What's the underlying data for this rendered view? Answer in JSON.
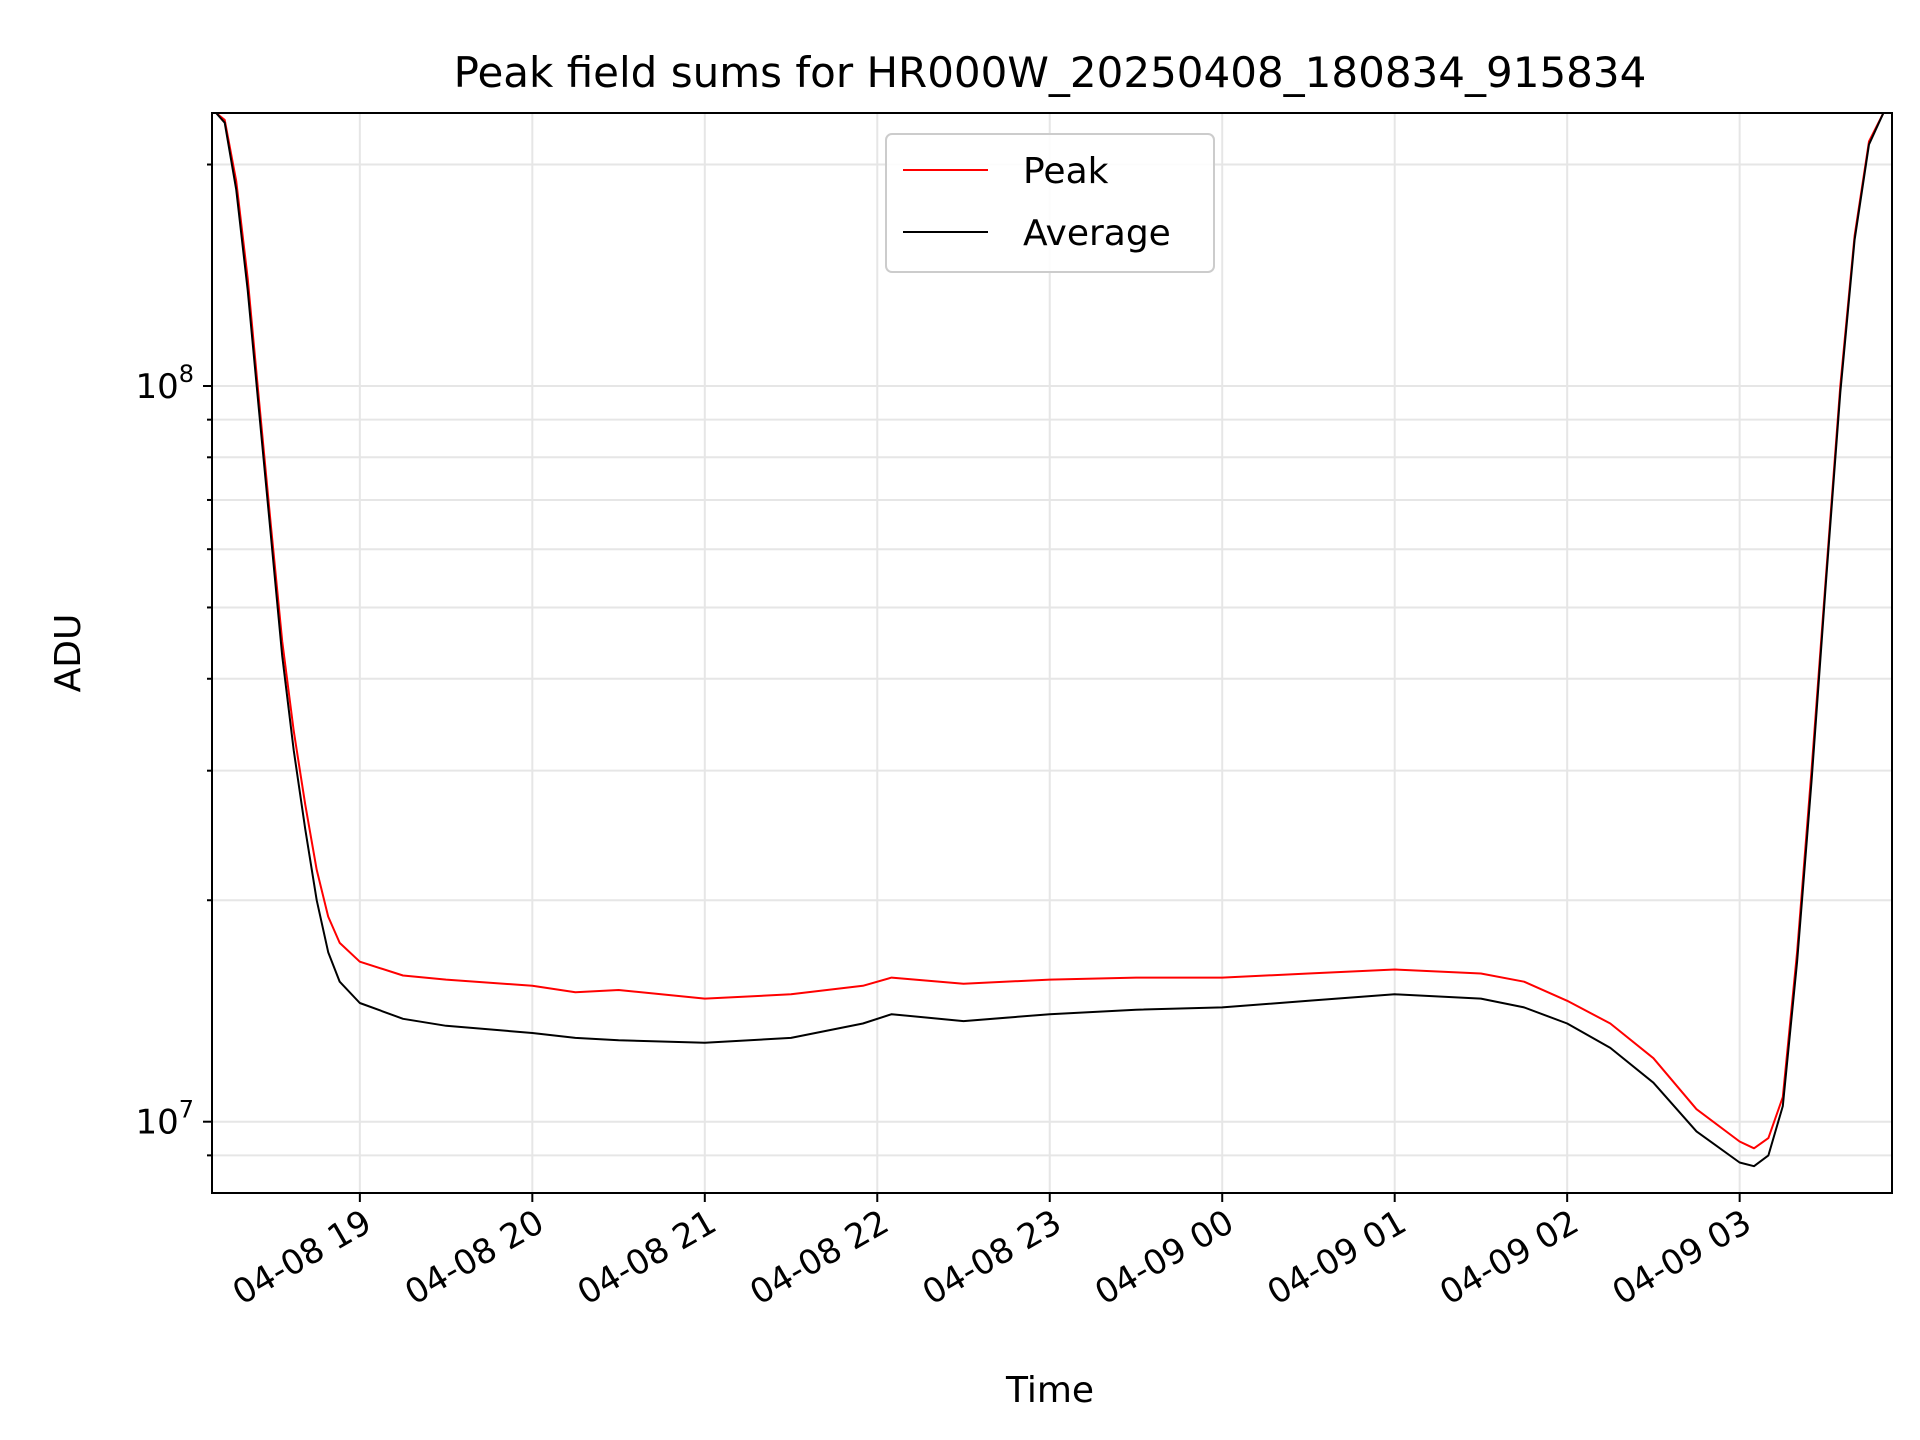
{
  "chart_data": {
    "type": "line",
    "title": "Peak field sums for HR000W_20250408_180834_915834",
    "xlabel": "Time",
    "ylabel": "ADU",
    "yscale": "log",
    "ylim": [
      8000000.0,
      235000000.0
    ],
    "xlim": [
      "2025-04-08 18:08:34",
      "2025-04-09 03:53:00"
    ],
    "grid": true,
    "legend_position": "top-center",
    "x_ticks": [
      {
        "t": "2025-04-08 19:00",
        "label": "04-08 19"
      },
      {
        "t": "2025-04-08 20:00",
        "label": "04-08 20"
      },
      {
        "t": "2025-04-08 21:00",
        "label": "04-08 21"
      },
      {
        "t": "2025-04-08 22:00",
        "label": "04-08 22"
      },
      {
        "t": "2025-04-08 23:00",
        "label": "04-08 23"
      },
      {
        "t": "2025-04-09 00:00",
        "label": "04-09 00"
      },
      {
        "t": "2025-04-09 01:00",
        "label": "04-09 01"
      },
      {
        "t": "2025-04-09 02:00",
        "label": "04-09 02"
      },
      {
        "t": "2025-04-09 03:00",
        "label": "04-09 03"
      }
    ],
    "y_major_ticks": [
      {
        "value": 10000000,
        "base": "10",
        "exp": "7"
      },
      {
        "value": 100000000,
        "base": "10",
        "exp": "8"
      }
    ],
    "y_minor_ticks": [
      9000000,
      20000000,
      30000000,
      40000000,
      50000000,
      60000000,
      70000000,
      80000000,
      90000000,
      200000000
    ],
    "series": [
      {
        "name": "Peak",
        "color": "#ff0000",
        "x": [
          "2025-04-08 18:10",
          "2025-04-08 18:13",
          "2025-04-08 18:17",
          "2025-04-08 18:21",
          "2025-04-08 18:25",
          "2025-04-08 18:29",
          "2025-04-08 18:33",
          "2025-04-08 18:37",
          "2025-04-08 18:41",
          "2025-04-08 18:45",
          "2025-04-08 18:49",
          "2025-04-08 18:53",
          "2025-04-08 19:00",
          "2025-04-08 19:15",
          "2025-04-08 19:30",
          "2025-04-08 20:00",
          "2025-04-08 20:15",
          "2025-04-08 20:30",
          "2025-04-08 21:00",
          "2025-04-08 21:30",
          "2025-04-08 21:55",
          "2025-04-08 22:05",
          "2025-04-08 22:30",
          "2025-04-08 23:00",
          "2025-04-08 23:30",
          "2025-04-09 00:00",
          "2025-04-09 00:30",
          "2025-04-09 01:00",
          "2025-04-09 01:30",
          "2025-04-09 01:45",
          "2025-04-09 02:00",
          "2025-04-09 02:15",
          "2025-04-09 02:30",
          "2025-04-09 02:45",
          "2025-04-09 03:00",
          "2025-04-09 03:05",
          "2025-04-09 03:10",
          "2025-04-09 03:15",
          "2025-04-09 03:20",
          "2025-04-09 03:25",
          "2025-04-09 03:30",
          "2025-04-09 03:35",
          "2025-04-09 03:40",
          "2025-04-09 03:45",
          "2025-04-09 03:50"
        ],
        "y": [
          235000000,
          230000000,
          190000000,
          140000000,
          95000000,
          65000000,
          45000000,
          34000000,
          27000000,
          22000000,
          19000000,
          17500000,
          16500000,
          15800000,
          15600000,
          15300000,
          15000000,
          15100000,
          14700000,
          14900000,
          15300000,
          15700000,
          15400000,
          15600000,
          15700000,
          15700000,
          15900000,
          16100000,
          15900000,
          15500000,
          14600000,
          13600000,
          12200000,
          10400000,
          9400000,
          9200000,
          9500000,
          10800000,
          17000000,
          30000000,
          55000000,
          100000000,
          160000000,
          215000000,
          235000000
        ]
      },
      {
        "name": "Average",
        "color": "#000000",
        "x": [
          "2025-04-08 18:10",
          "2025-04-08 18:13",
          "2025-04-08 18:17",
          "2025-04-08 18:21",
          "2025-04-08 18:25",
          "2025-04-08 18:29",
          "2025-04-08 18:33",
          "2025-04-08 18:37",
          "2025-04-08 18:41",
          "2025-04-08 18:45",
          "2025-04-08 18:49",
          "2025-04-08 18:53",
          "2025-04-08 19:00",
          "2025-04-08 19:15",
          "2025-04-08 19:30",
          "2025-04-08 20:00",
          "2025-04-08 20:15",
          "2025-04-08 20:30",
          "2025-04-08 21:00",
          "2025-04-08 21:30",
          "2025-04-08 21:55",
          "2025-04-08 22:05",
          "2025-04-08 22:30",
          "2025-04-08 23:00",
          "2025-04-08 23:30",
          "2025-04-09 00:00",
          "2025-04-09 00:30",
          "2025-04-09 01:00",
          "2025-04-09 01:30",
          "2025-04-09 01:45",
          "2025-04-09 02:00",
          "2025-04-09 02:15",
          "2025-04-09 02:30",
          "2025-04-09 02:45",
          "2025-04-09 03:00",
          "2025-04-09 03:05",
          "2025-04-09 03:10",
          "2025-04-09 03:15",
          "2025-04-09 03:20",
          "2025-04-09 03:25",
          "2025-04-09 03:30",
          "2025-04-09 03:35",
          "2025-04-09 03:40",
          "2025-04-09 03:45",
          "2025-04-09 03:50"
        ],
        "y": [
          235000000,
          228000000,
          185000000,
          135000000,
          92000000,
          63000000,
          43000000,
          32000000,
          25000000,
          20000000,
          17000000,
          15500000,
          14500000,
          13800000,
          13500000,
          13200000,
          13000000,
          12900000,
          12800000,
          13000000,
          13600000,
          14000000,
          13700000,
          14000000,
          14200000,
          14300000,
          14600000,
          14900000,
          14700000,
          14300000,
          13600000,
          12600000,
          11300000,
          9700000,
          8800000,
          8700000,
          9000000,
          10500000,
          16500000,
          29000000,
          54000000,
          98000000,
          158000000,
          213000000,
          235000000
        ]
      }
    ]
  }
}
